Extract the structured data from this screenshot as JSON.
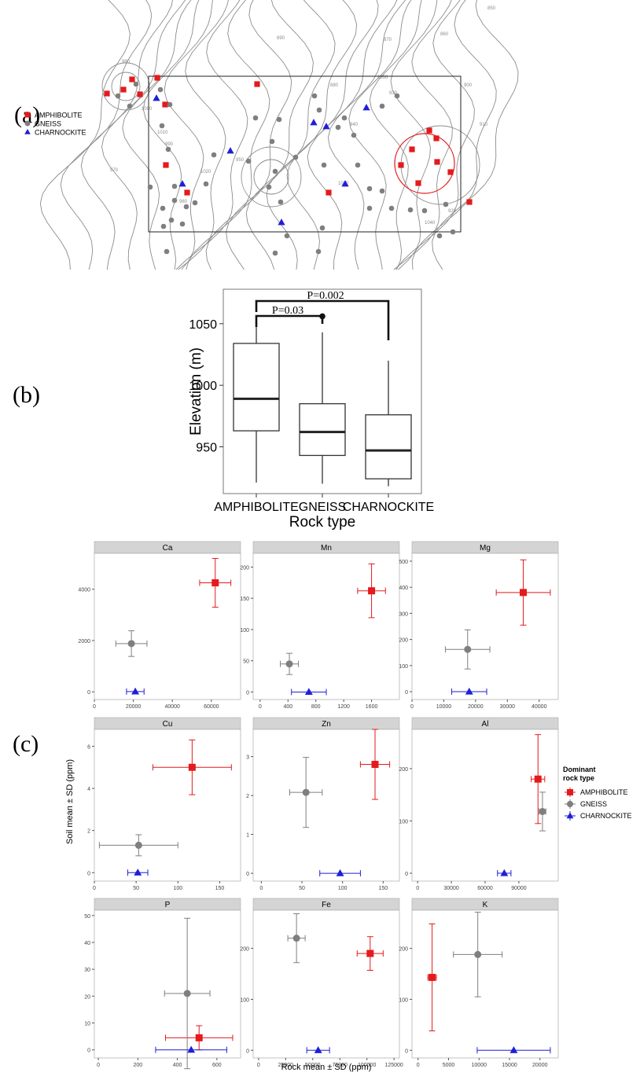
{
  "panel_labels": {
    "a": "(a)",
    "b": "(b)",
    "c": "(c)"
  },
  "colors": {
    "amphibolite": "#e41a1c",
    "gneiss": "#7f7f7f",
    "charnockite": "#1f1fd6",
    "strip": "#d4d4d4",
    "contour": "#8c8c8c"
  },
  "map_legend": [
    {
      "label": "AMPHIBOLITE",
      "shape": "square"
    },
    {
      "label": "GNEISS",
      "shape": "circle"
    },
    {
      "label": "CHARNOCKITE",
      "shape": "triangle"
    }
  ],
  "map_contour_labels": [
    "850",
    "860",
    "870",
    "880",
    "890",
    "900",
    "910",
    "920",
    "930",
    "940",
    "950",
    "960",
    "970",
    "980",
    "990",
    "1000",
    "1010",
    "1020",
    "1030",
    "1040",
    "1050"
  ],
  "chart_data": [
    {
      "type": "box",
      "panel": "(b)",
      "xlabel": "Rock type",
      "ylabel": "Elevation (m)",
      "categories": [
        "AMPHIBOLITE",
        "GNEISS",
        "CHARNOCKITE"
      ],
      "yticks": [
        950,
        1000,
        1050
      ],
      "ylim": [
        912,
        1078
      ],
      "boxes": [
        {
          "min": 921,
          "q1": 963,
          "median": 989,
          "q3": 1034,
          "max": 1054,
          "outliers": []
        },
        {
          "min": 920,
          "q1": 943,
          "median": 962,
          "q3": 985,
          "max": 1043,
          "outliers": [
            1056
          ]
        },
        {
          "min": 918,
          "q1": 924,
          "median": 947,
          "q3": 976,
          "max": 1020,
          "outliers": []
        }
      ],
      "annotations": [
        {
          "text": "P=0.03",
          "from": "AMPHIBOLITE",
          "to": "GNEISS"
        },
        {
          "text": "P=0.002",
          "from": "AMPHIBOLITE",
          "to": "CHARNOCKITE"
        }
      ]
    },
    {
      "type": "scatter",
      "panel": "(c)",
      "xlabel": "Rock mean ± SD (ppm)",
      "ylabel": "Soil mean ± SD (ppm)",
      "legend": {
        "title": "Dominant rock type",
        "entries": [
          "AMPHIBOLITE",
          "GNEISS",
          "CHARNOCKITE"
        ],
        "placement": "right"
      },
      "facets": [
        {
          "name": "Ca",
          "xlim": [
            0,
            75000
          ],
          "ylim": [
            -300,
            5400
          ],
          "xticks": [
            0,
            20000,
            40000,
            60000
          ],
          "yticks": [
            0,
            2000,
            4000
          ],
          "points": [
            {
              "s": "AMPHIBOLITE",
              "x": 62000,
              "xsd": 8000,
              "y": 4250,
              "ysd": 950
            },
            {
              "s": "GNEISS",
              "x": 19000,
              "xsd": 8000,
              "y": 1880,
              "ysd": 500
            },
            {
              "s": "CHARNOCKITE",
              "x": 21000,
              "xsd": 4500,
              "y": 10,
              "ysd": 0
            }
          ]
        },
        {
          "name": "Mn",
          "xlim": [
            -100,
            2000
          ],
          "ylim": [
            -12,
            222
          ],
          "xticks": [
            0,
            400,
            800,
            1200,
            1600
          ],
          "yticks": [
            0,
            50,
            100,
            150,
            200
          ],
          "points": [
            {
              "s": "AMPHIBOLITE",
              "x": 1600,
              "xsd": 200,
              "y": 162,
              "ysd": 43
            },
            {
              "s": "GNEISS",
              "x": 420,
              "xsd": 130,
              "y": 45,
              "ysd": 17
            },
            {
              "s": "CHARNOCKITE",
              "x": 700,
              "xsd": 250,
              "y": 0,
              "ysd": 0
            }
          ]
        },
        {
          "name": "Mg",
          "xlim": [
            0,
            46000
          ],
          "ylim": [
            -30,
            530
          ],
          "xticks": [
            0,
            10000,
            20000,
            30000,
            40000
          ],
          "yticks": [
            0,
            100,
            200,
            300,
            400,
            500
          ],
          "points": [
            {
              "s": "AMPHIBOLITE",
              "x": 35000,
              "xsd": 8500,
              "y": 380,
              "ysd": 125
            },
            {
              "s": "GNEISS",
              "x": 17500,
              "xsd": 7000,
              "y": 162,
              "ysd": 75
            },
            {
              "s": "CHARNOCKITE",
              "x": 18000,
              "xsd": 5500,
              "y": 0,
              "ysd": 0
            }
          ]
        },
        {
          "name": "Cu",
          "xlim": [
            0,
            175
          ],
          "ylim": [
            -0.4,
            6.8
          ],
          "xticks": [
            0,
            50,
            100,
            150
          ],
          "yticks": [
            0,
            2,
            4,
            6
          ],
          "points": [
            {
              "s": "AMPHIBOLITE",
              "x": 117,
              "xsd": 47,
              "y": 5,
              "ysd": 1.3
            },
            {
              "s": "GNEISS",
              "x": 53,
              "xsd": 47,
              "y": 1.3,
              "ysd": 0.5
            },
            {
              "s": "CHARNOCKITE",
              "x": 52,
              "xsd": 12,
              "y": 0,
              "ysd": 0
            }
          ]
        },
        {
          "name": "Zn",
          "xlim": [
            -10,
            170
          ],
          "ylim": [
            -0.2,
            3.7
          ],
          "xticks": [
            0,
            50,
            100,
            150
          ],
          "yticks": [
            0,
            1,
            2,
            3
          ],
          "points": [
            {
              "s": "AMPHIBOLITE",
              "x": 140,
              "xsd": 18,
              "y": 2.8,
              "ysd": 0.9
            },
            {
              "s": "GNEISS",
              "x": 55,
              "xsd": 20,
              "y": 2.08,
              "ysd": 0.9
            },
            {
              "s": "CHARNOCKITE",
              "x": 97,
              "xsd": 25,
              "y": 0,
              "ysd": 0
            }
          ]
        },
        {
          "name": "Al",
          "xlim": [
            -5000,
            125000
          ],
          "ylim": [
            -15,
            275
          ],
          "xticks": [
            0,
            30000,
            60000,
            90000
          ],
          "yticks": [
            0,
            100,
            200
          ],
          "points": [
            {
              "s": "AMPHIBOLITE",
              "x": 107000,
              "xsd": 6000,
              "y": 180,
              "ysd": 85
            },
            {
              "s": "GNEISS",
              "x": 111000,
              "xsd": 3000,
              "y": 118,
              "ysd": 37
            },
            {
              "s": "CHARNOCKITE",
              "x": 77000,
              "xsd": 6000,
              "y": 0,
              "ysd": 0
            }
          ]
        },
        {
          "name": "P",
          "xlim": [
            -20,
            720
          ],
          "ylim": [
            -3,
            52
          ],
          "xticks": [
            0,
            200,
            400,
            600
          ],
          "yticks": [
            0,
            10,
            20,
            30,
            40,
            50
          ],
          "points": [
            {
              "s": "AMPHIBOLITE",
              "x": 510,
              "xsd": 170,
              "y": 4.5,
              "ysd": 4.5
            },
            {
              "s": "GNEISS",
              "x": 450,
              "xsd": 115,
              "y": 21,
              "ysd": 28
            },
            {
              "s": "CHARNOCKITE",
              "x": 470,
              "xsd": 180,
              "y": 0,
              "ysd": 0
            }
          ]
        },
        {
          "name": "Fe",
          "xlim": [
            -5000,
            130000
          ],
          "ylim": [
            -15,
            275
          ],
          "xticks": [
            0,
            25000,
            50000,
            75000,
            100000,
            125000
          ],
          "yticks": [
            0,
            100,
            200
          ],
          "points": [
            {
              "s": "AMPHIBOLITE",
              "x": 103000,
              "xsd": 12000,
              "y": 190,
              "ysd": 33
            },
            {
              "s": "GNEISS",
              "x": 35000,
              "xsd": 8000,
              "y": 220,
              "ysd": 48
            },
            {
              "s": "CHARNOCKITE",
              "x": 55000,
              "xsd": 10500,
              "y": 0,
              "ysd": 0
            }
          ]
        },
        {
          "name": "K",
          "xlim": [
            -1000,
            23000
          ],
          "ylim": [
            -15,
            275
          ],
          "xticks": [
            0,
            5000,
            10000,
            15000,
            20000
          ],
          "yticks": [
            0,
            100,
            200
          ],
          "points": [
            {
              "s": "AMPHIBOLITE",
              "x": 2300,
              "xsd": 700,
              "y": 143,
              "ysd": 105
            },
            {
              "s": "GNEISS",
              "x": 9800,
              "xsd": 4000,
              "y": 188,
              "ysd": 83
            },
            {
              "s": "CHARNOCKITE",
              "x": 15700,
              "xsd": 6000,
              "y": 0,
              "ysd": 0
            }
          ]
        }
      ]
    }
  ]
}
